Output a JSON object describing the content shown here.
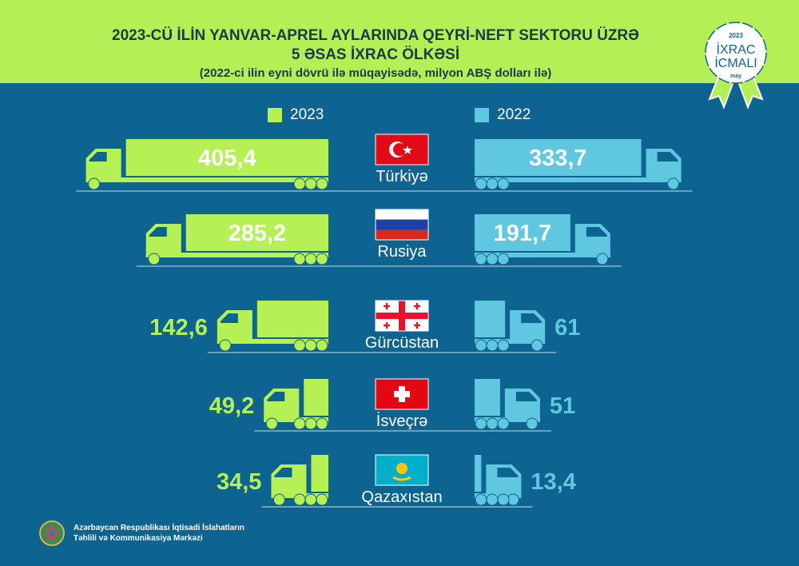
{
  "header": {
    "title_line1": "2023-CÜ İLİN YANVAR-APREL AYLARINDA QEYRİ-NEFT SEKTORU ÜZRƏ",
    "title_line2": "5 ƏSAS İXRAC ÖLKƏSİ",
    "subtitle": "(2022-ci ilin eyni dövrü ilə müqayisədə, milyon ABŞ dolları ilə)"
  },
  "badge": {
    "year": "2023",
    "line1": "İXRAC",
    "line2": "İCMALI",
    "month": "may"
  },
  "footer": {
    "line1": "Azərbaycan Respublikası İqtisadi İslahatların",
    "line2": "Təhlili və Kommunikasiya Mərkəzi"
  },
  "colors": {
    "bg": "#0e6490",
    "green": "#b5f154",
    "blue": "#5fc8e0"
  },
  "chart_data": {
    "type": "bar",
    "title": "2023-CÜ İLİN YANVAR-APREL AYLARINDA QEYRİ-NEFT SEKTORU ÜZRƏ 5 ƏSAS İXRAC ÖLKƏSİ",
    "unit": "milyon ABŞ dolları",
    "categories": [
      "Türkiyə",
      "Rusiya",
      "Gürcüstan",
      "İsveçrə",
      "Qazaxıstan"
    ],
    "flags": [
      "turkey",
      "russia",
      "georgia",
      "switzerland",
      "kazakhstan"
    ],
    "series": [
      {
        "name": "2023",
        "color": "#b5f154",
        "values": [
          405.4,
          285.2,
          142.6,
          49.2,
          34.5
        ],
        "labels": [
          "405,4",
          "285,2",
          "142,6",
          "49,2",
          "34,5"
        ]
      },
      {
        "name": "2022",
        "color": "#5fc8e0",
        "values": [
          333.7,
          191.7,
          61,
          51,
          13.4
        ],
        "labels": [
          "333,7",
          "191,7",
          "61",
          "51",
          "13,4"
        ]
      }
    ],
    "legend": "top"
  }
}
